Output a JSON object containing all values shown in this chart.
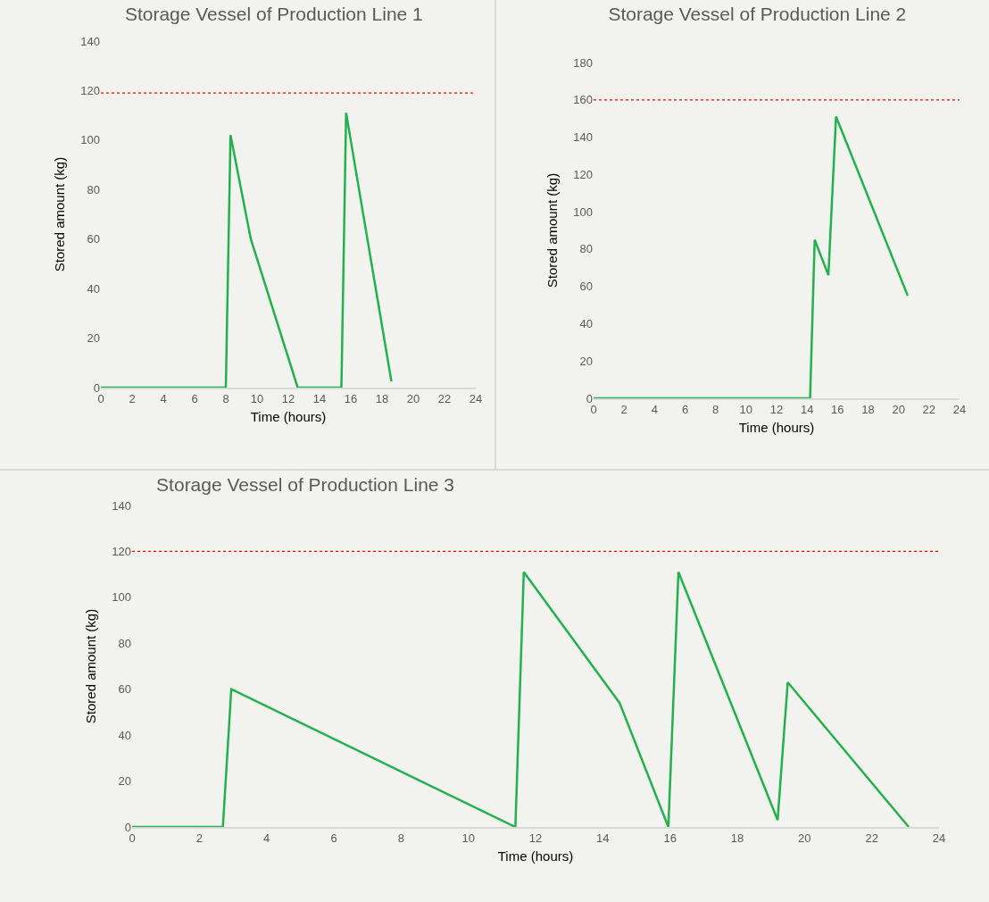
{
  "chart_data": [
    {
      "type": "line",
      "title": "Storage Vessel of Production Line 1",
      "xlabel": "Time (hours)",
      "ylabel": "Stored amount (kg)",
      "x": [
        0,
        8.0,
        8.3,
        9.6,
        12.6,
        15.4,
        15.7,
        18.6
      ],
      "series": [
        {
          "color": "#22b14c",
          "values": [
            0,
            0,
            102,
            60,
            0,
            0,
            111,
            2.5
          ]
        }
      ],
      "xlim": [
        0,
        24
      ],
      "xticks": [
        0,
        2,
        4,
        6,
        8,
        10,
        12,
        14,
        16,
        18,
        20,
        22,
        24
      ],
      "ylim": [
        0,
        140
      ],
      "yticks": [
        0,
        20,
        40,
        60,
        80,
        100,
        120,
        140
      ],
      "ref_lines": [
        {
          "axis": "y",
          "value": 119,
          "color": "#ff0000",
          "line_style": "dotted"
        }
      ]
    },
    {
      "type": "line",
      "title": "Storage Vessel of Production Line 2",
      "xlabel": "Time (hours)",
      "ylabel": "Stored amount (kg)",
      "x": [
        0,
        14.2,
        14.5,
        15.4,
        15.9,
        20.6
      ],
      "series": [
        {
          "color": "#22b14c",
          "values": [
            0,
            0,
            85,
            66,
            151,
            55
          ]
        }
      ],
      "xlim": [
        0,
        24
      ],
      "xticks": [
        0,
        2,
        4,
        6,
        8,
        10,
        12,
        14,
        16,
        18,
        20,
        22,
        24
      ],
      "ylim": [
        0,
        180
      ],
      "yticks": [
        0,
        20,
        40,
        60,
        80,
        100,
        120,
        140,
        160,
        180
      ],
      "ref_lines": [
        {
          "axis": "y",
          "value": 160,
          "color": "#ff0000",
          "line_style": "dotted"
        }
      ]
    },
    {
      "type": "line",
      "title": "Storage Vessel of Production Line 3",
      "xlabel": "Time (hours)",
      "ylabel": "Stored amount (kg)",
      "x": [
        0,
        2.7,
        2.95,
        11.4,
        11.65,
        14.5,
        15.95,
        16.25,
        19.2,
        19.5,
        23.1
      ],
      "series": [
        {
          "color": "#22b14c",
          "values": [
            0,
            0,
            60,
            0,
            111,
            54,
            0,
            111,
            3,
            63,
            0
          ]
        }
      ],
      "xlim": [
        0,
        24
      ],
      "xticks": [
        0,
        2,
        4,
        6,
        8,
        10,
        12,
        14,
        16,
        18,
        20,
        22,
        24
      ],
      "ylim": [
        0,
        140
      ],
      "yticks": [
        0,
        20,
        40,
        60,
        80,
        100,
        120,
        140
      ],
      "ref_lines": [
        {
          "axis": "y",
          "value": 120,
          "color": "#ff0000",
          "line_style": "dotted"
        }
      ]
    }
  ]
}
